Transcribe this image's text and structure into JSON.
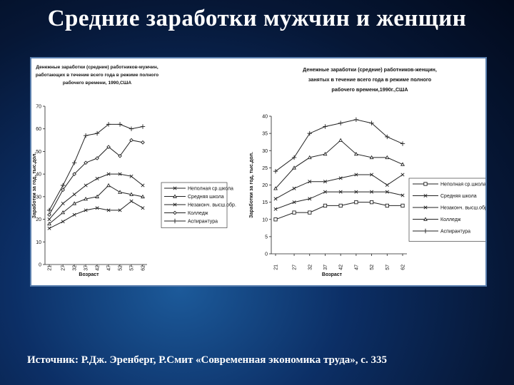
{
  "slide": {
    "title": "Средние заработки мужчин и женщин",
    "source": "Источник: Р.Дж. Эренберг, Р.Смит «Современная экономика труда», с. 335"
  },
  "colors": {
    "background": "#0c2f66",
    "title": "#ffffff",
    "panel": "#ffffff",
    "line": "#222222"
  },
  "chart_data": [
    {
      "type": "line",
      "title_lines": [
        "Денежные заработки (средние) работников-мужчин,",
        "работающих в течение всего года в режиме полного",
        "рабочего времени, 1990,США"
      ],
      "xlabel": "Возраст",
      "ylabel": "Заработки за год, тыс.дол.",
      "x": [
        21,
        27,
        32,
        37,
        42,
        47,
        52,
        57,
        62
      ],
      "x_ticks": [
        "21",
        "27",
        "32",
        "37",
        "42",
        "47",
        "52",
        "57",
        "62"
      ],
      "ylim": [
        0,
        70
      ],
      "y_ticks": [
        "0",
        "10",
        "20",
        "30",
        "40",
        "50",
        "60",
        "70"
      ],
      "grid": false,
      "legend_position": "center-right",
      "series": [
        {
          "name": "Неполная ср.школа",
          "marker": "x",
          "values": [
            16,
            19,
            22,
            24,
            25,
            24,
            24,
            28,
            25
          ]
        },
        {
          "name": "Средняя школа",
          "marker": "triangle",
          "values": [
            18,
            23,
            27,
            29,
            30,
            35,
            32,
            31,
            30
          ]
        },
        {
          "name": "Незаконч. высш.обр.",
          "marker": "x",
          "values": [
            20,
            27,
            31,
            35,
            38,
            40,
            40,
            39,
            35
          ]
        },
        {
          "name": "Колледж",
          "marker": "diamond",
          "values": [
            22,
            33,
            40,
            45,
            47,
            52,
            48,
            55,
            54
          ]
        },
        {
          "name": "Аспирантура",
          "marker": "plus",
          "values": [
            24,
            35,
            45,
            57,
            58,
            62,
            62,
            60,
            61
          ]
        }
      ]
    },
    {
      "type": "line",
      "title_lines": [
        "Денежные заработки (средние) работников-женщин,",
        "занятых в течение всего года в режиме полного",
        "рабочего времени,1990г.,США"
      ],
      "xlabel": "Возраст",
      "ylabel": "Заработки за год, тыс.дол.",
      "x": [
        21,
        27,
        32,
        37,
        42,
        47,
        52,
        57,
        62
      ],
      "x_ticks": [
        "21",
        "27",
        "32",
        "37",
        "42",
        "47",
        "52",
        "57",
        "62"
      ],
      "ylim": [
        0,
        40
      ],
      "y_ticks": [
        "0",
        "5",
        "10",
        "15",
        "20",
        "25",
        "30",
        "35",
        "40"
      ],
      "grid": false,
      "legend_position": "lower-right",
      "series": [
        {
          "name": "Неполная ср.школа",
          "marker": "square",
          "values": [
            10,
            12,
            12,
            14,
            14,
            15,
            15,
            14,
            14
          ]
        },
        {
          "name": "Средняя школа",
          "marker": "x",
          "values": [
            13,
            15,
            16,
            18,
            18,
            18,
            18,
            18,
            17
          ]
        },
        {
          "name": "Незаконч. высш.обр.",
          "marker": "x",
          "values": [
            16,
            19,
            21,
            21,
            22,
            23,
            23,
            20,
            23
          ]
        },
        {
          "name": "Колледж",
          "marker": "triangle",
          "values": [
            19,
            25,
            28,
            29,
            33,
            29,
            28,
            28,
            26
          ]
        },
        {
          "name": "Аспирантура",
          "marker": "plus",
          "values": [
            24,
            28,
            35,
            37,
            38,
            39,
            38,
            34,
            32
          ]
        }
      ]
    }
  ]
}
